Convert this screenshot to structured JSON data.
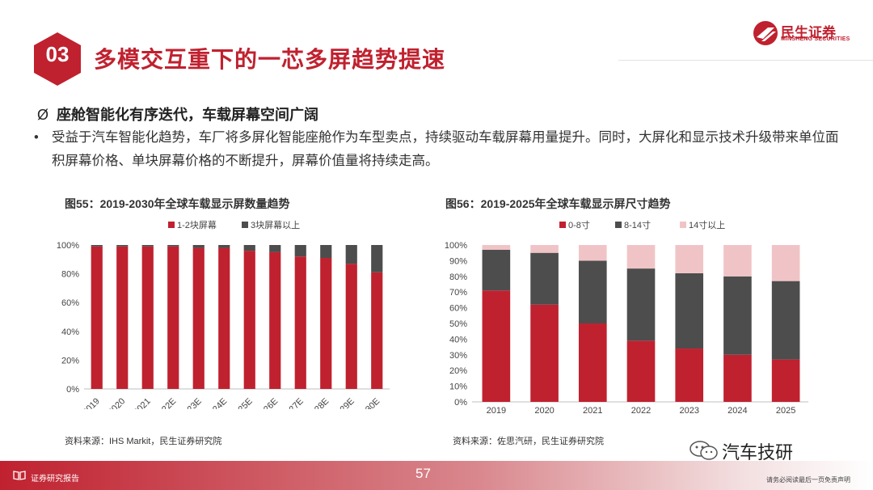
{
  "header": {
    "section_number": "03",
    "title": "多模交互重下的一芯多屏趋势提速",
    "logo_cn": "民生证券",
    "logo_en": "MINSHENG SECURITIES"
  },
  "content": {
    "subheading_marker": "Ø",
    "subheading": "座舱智能化有序迭代，车载屏幕空间广阔",
    "bullet_marker": "•",
    "bullet_text": "受益于汽车智能化趋势，车厂将多屏化智能座舱作为车型卖点，持续驱动车载屏幕用量提升。同时，大屏化和显示技术升级带来单位面积屏幕价格、单块屏幕价格的不断提升，屏幕价值量将持续走高。"
  },
  "colors": {
    "red": "#c0212f",
    "dark_gray": "#4d4d4d",
    "pink": "#f0c4c6",
    "accent": "#c0212f"
  },
  "chart_data": [
    {
      "type": "bar",
      "stacked": true,
      "title": "图55：2019-2030年全球车载显示屏数量趋势",
      "categories": [
        "2019",
        "2020",
        "2021",
        "2022E",
        "2023E",
        "2024E",
        "2025E",
        "2026E",
        "2027E",
        "2028E",
        "2029E",
        "2030E"
      ],
      "series": [
        {
          "name": "1-2块屏幕",
          "color": "#c0212f",
          "values": [
            99,
            99,
            99,
            99,
            98,
            98,
            96,
            95,
            92,
            91,
            87,
            81
          ]
        },
        {
          "name": "3块屏幕以上",
          "color": "#4d4d4d",
          "values": [
            1,
            1,
            1,
            1,
            2,
            2,
            4,
            5,
            8,
            9,
            13,
            19
          ]
        }
      ],
      "ylim": [
        0,
        100
      ],
      "yticks": [
        "0%",
        "20%",
        "40%",
        "60%",
        "80%",
        "100%"
      ],
      "legend": "top",
      "source": "资料来源：IHS Markit，民生证券研究院"
    },
    {
      "type": "bar",
      "stacked": true,
      "title": "图56：2019-2025年全球车载显示屏尺寸趋势",
      "categories": [
        "2019",
        "2020",
        "2021",
        "2022",
        "2023",
        "2024",
        "2025"
      ],
      "series": [
        {
          "name": "0-8寸",
          "color": "#c0212f",
          "values": [
            71,
            62,
            50,
            39,
            34,
            30,
            27
          ]
        },
        {
          "name": "8-14寸",
          "color": "#4d4d4d",
          "values": [
            26,
            33,
            40,
            46,
            48,
            50,
            50
          ]
        },
        {
          "name": "14寸以上",
          "color": "#f0c4c6",
          "values": [
            3,
            5,
            10,
            15,
            18,
            20,
            23
          ]
        }
      ],
      "ylim": [
        0,
        100
      ],
      "yticks": [
        "0%",
        "10%",
        "20%",
        "30%",
        "40%",
        "50%",
        "60%",
        "70%",
        "80%",
        "90%",
        "100%"
      ],
      "legend": "top",
      "source": "资料来源：佐思汽研，民生证券研究院"
    }
  ],
  "footer": {
    "label": "证券研究报告",
    "page_number": "57",
    "wechat_name": "汽车技研",
    "disclaimer": "请务必阅读最后一页免责声明"
  }
}
